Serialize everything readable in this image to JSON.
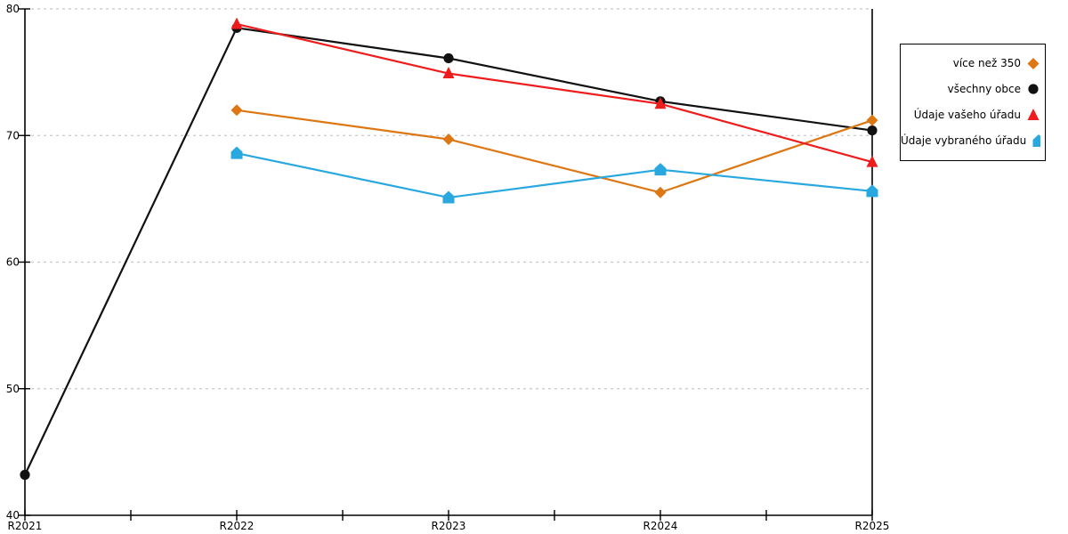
{
  "chart_data": {
    "type": "line",
    "title": "",
    "xlabel": "",
    "ylabel": "",
    "categories": [
      "R2021",
      "R2022",
      "R2023",
      "R2024",
      "R2025"
    ],
    "series": [
      {
        "name": "více než 350",
        "color": "#DD7714",
        "marker": "diamond",
        "values": [
          null,
          72.0,
          69.7,
          65.5,
          71.2
        ]
      },
      {
        "name": "všechny obce",
        "color": "#111111",
        "marker": "circle",
        "values": [
          43.2,
          78.5,
          76.1,
          72.7,
          70.4
        ]
      },
      {
        "name": "Údaje vašeho úřadu",
        "color": "#EE1C1C",
        "marker": "triangle",
        "values": [
          null,
          78.8,
          74.9,
          72.5,
          67.9
        ]
      },
      {
        "name": "Údaje vybraného úřadu",
        "color": "#29A8E0",
        "marker": "pentagon",
        "values": [
          null,
          68.6,
          65.1,
          67.3,
          65.6
        ]
      }
    ],
    "ylim": [
      40,
      80
    ],
    "yticks": [
      40,
      50,
      60,
      70,
      80
    ],
    "grid": "horizontal-dashed",
    "gridline_color": "#c8c8c8",
    "axis_color": "#000000",
    "legend_position": "right",
    "draw_order": [
      1,
      0,
      2,
      3
    ]
  }
}
